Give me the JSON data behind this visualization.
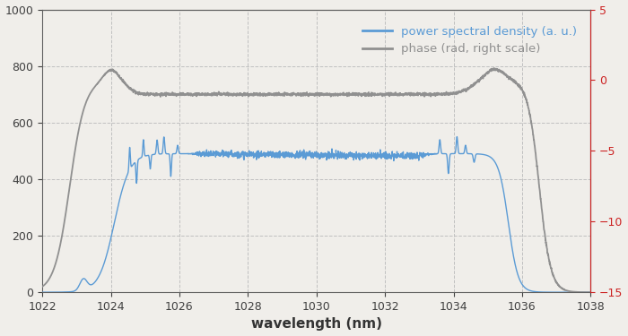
{
  "xlabel": "wavelength (nm)",
  "xlim": [
    1022,
    1038
  ],
  "ylim_left": [
    0,
    1000
  ],
  "ylim_right": [
    -15,
    5
  ],
  "yticks_left": [
    0,
    200,
    400,
    600,
    800,
    1000
  ],
  "yticks_right": [
    -15,
    -10,
    -5,
    0,
    5
  ],
  "xticks": [
    1022,
    1024,
    1026,
    1028,
    1030,
    1032,
    1034,
    1036,
    1038
  ],
  "psd_color": "#5b9bd5",
  "phase_color": "#909090",
  "grid_color": "#c0c0c0",
  "background_color": "#f0eeea",
  "legend_psd": "power spectral density (a. u.)",
  "legend_phase": "phase (rad, right scale)",
  "legend_psd_color": "#5b9bd5",
  "legend_phase_color": "#909090",
  "right_axis_color": "#cc2222"
}
